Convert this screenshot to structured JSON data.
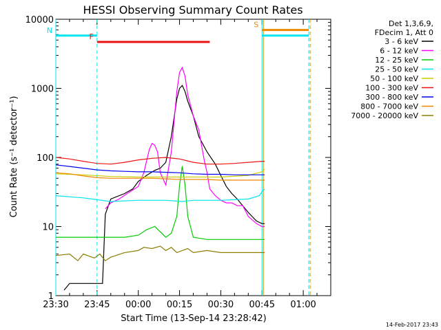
{
  "chart_data": {
    "type": "line",
    "title": "HESSI Observing Summary Count Rates",
    "xlabel": "Start Time (13-Sep-14 23:28:42)",
    "ylabel": "Count Rate (s⁻¹ detector⁻¹)",
    "yscale": "log",
    "ylim": [
      1,
      10000
    ],
    "xlim_minutes_from_2330": [
      0,
      100
    ],
    "x_ticks": [
      "23:30",
      "23:45",
      "00:00",
      "00:15",
      "00:30",
      "00:45",
      "01:00"
    ],
    "x_tick_minutes": [
      0,
      15,
      30,
      45,
      60,
      75,
      90
    ],
    "y_ticks": [
      "1",
      "10",
      "100",
      "1000",
      "10000"
    ],
    "y_tick_values": [
      1,
      10,
      100,
      1000,
      10000
    ],
    "legend_header": [
      "Det 1,3,6,9,",
      "FDecim 1, Att 0"
    ],
    "legend_placement": "right",
    "series": [
      {
        "name": "3 - 6 keV",
        "color": "#000000",
        "x": [
          3,
          5,
          17,
          18,
          20,
          25,
          28,
          30,
          33,
          36,
          38,
          40,
          42,
          44,
          45,
          46,
          47,
          48,
          50,
          52,
          55,
          58,
          60,
          62,
          64,
          66,
          68,
          70,
          73,
          75,
          76
        ],
        "y": [
          1.2,
          1.5,
          1.5,
          15,
          25,
          30,
          35,
          45,
          55,
          65,
          70,
          85,
          200,
          700,
          1000,
          1100,
          900,
          650,
          400,
          200,
          120,
          80,
          55,
          38,
          30,
          25,
          20,
          16,
          12,
          11,
          11
        ]
      },
      {
        "name": "6 - 12 keV",
        "color": "#ff00ff",
        "x": [
          18,
          20,
          23,
          26,
          30,
          32,
          34,
          35,
          36,
          37,
          38,
          40,
          42,
          44,
          45,
          46,
          47,
          48,
          50,
          52,
          54,
          55,
          56,
          58,
          60,
          62,
          64,
          66,
          68,
          70,
          73,
          75,
          76
        ],
        "y": [
          18,
          22,
          25,
          30,
          38,
          60,
          130,
          160,
          150,
          120,
          60,
          40,
          120,
          900,
          1700,
          2000,
          1500,
          800,
          400,
          250,
          90,
          60,
          35,
          28,
          24,
          22,
          22,
          20,
          20,
          14,
          11,
          10,
          10
        ]
      },
      {
        "name": "12 - 25 keV",
        "color": "#00cc00",
        "x": [
          0,
          5,
          10,
          15,
          20,
          25,
          30,
          33,
          36,
          40,
          42,
          44,
          45,
          46,
          47,
          48,
          50,
          55,
          60,
          65,
          70,
          75,
          76
        ],
        "y": [
          7,
          7,
          7,
          7,
          7,
          7,
          7.5,
          9,
          10,
          7,
          8,
          14,
          40,
          75,
          40,
          14,
          7,
          6.5,
          6.5,
          6.5,
          6.5,
          6.5,
          6.5
        ]
      },
      {
        "name": "25 - 50 keV",
        "color": "#00e5ee",
        "x": [
          0,
          10,
          20,
          30,
          40,
          46,
          50,
          60,
          70,
          74,
          75,
          76
        ],
        "y": [
          28,
          26,
          23,
          24,
          24,
          23,
          24,
          24,
          25,
          28,
          32,
          35
        ]
      },
      {
        "name": "50 - 100 keV",
        "color": "#cccc00",
        "x": [
          0,
          10,
          20,
          30,
          40,
          50,
          60,
          70,
          75,
          76
        ],
        "y": [
          58,
          56,
          53,
          52,
          52,
          52,
          52,
          55,
          62,
          68
        ]
      },
      {
        "name": "100 - 300 keV",
        "color": "#ee1111",
        "x": [
          0,
          5,
          10,
          15,
          20,
          25,
          30,
          35,
          40,
          45,
          50,
          55,
          60,
          65,
          70,
          75,
          76
        ],
        "y": [
          100,
          95,
          88,
          82,
          80,
          85,
          92,
          97,
          100,
          95,
          85,
          80,
          80,
          82,
          85,
          88,
          88
        ]
      },
      {
        "name": "300 - 800 keV",
        "color": "#0000ee",
        "x": [
          0,
          5,
          10,
          15,
          20,
          25,
          30,
          35,
          40,
          45,
          50,
          55,
          60,
          65,
          70,
          75,
          76
        ],
        "y": [
          78,
          74,
          70,
          66,
          64,
          63,
          62,
          62,
          61,
          60,
          58,
          57,
          57,
          56,
          56,
          56,
          56
        ]
      },
      {
        "name": "800 - 7000 keV",
        "color": "#ee8800",
        "x": [
          0,
          5,
          10,
          15,
          20,
          25,
          30,
          35,
          40,
          45,
          50,
          55,
          60,
          65,
          70,
          75,
          76
        ],
        "y": [
          60,
          58,
          54,
          51,
          50,
          50,
          50,
          50,
          49,
          48,
          48,
          48,
          47,
          47,
          47,
          47,
          47
        ]
      },
      {
        "name": "7000 - 20000 keV",
        "color": "#8b7d00",
        "x": [
          0,
          5,
          8,
          10,
          14,
          16,
          18,
          20,
          25,
          30,
          32,
          35,
          38,
          40,
          42,
          44,
          46,
          48,
          50,
          55,
          60,
          65,
          70,
          74,
          75,
          76
        ],
        "y": [
          3.8,
          4,
          3.2,
          4,
          3.5,
          4,
          3.2,
          3.6,
          4.2,
          4.5,
          5,
          4.8,
          5.2,
          4.5,
          5,
          4.2,
          4.5,
          4.8,
          4.2,
          4.5,
          4.2,
          4.2,
          4.2,
          4.2,
          4.2,
          4.2
        ]
      }
    ],
    "state_bars": [
      {
        "label": "N",
        "color": "#00e5ee",
        "x0": 0,
        "x1": 15,
        "y": 5800
      },
      {
        "label": "F",
        "color": "#ee1111",
        "x0": 15,
        "x1": 56,
        "y": 4700
      },
      {
        "label": "S",
        "color": "#ee8800",
        "x0": 75,
        "x1": 92,
        "y": 7000
      },
      {
        "label": "",
        "color": "#00e5ee",
        "x0": 75,
        "x1": 92,
        "y": 5800
      }
    ],
    "vertical_markers": [
      {
        "x": 0,
        "color": "#00e5ee",
        "style": "solid"
      },
      {
        "x": 15,
        "color": "#00e5ee",
        "style": "dashed"
      },
      {
        "x": 75,
        "color": "#00e5ee",
        "style": "solid"
      },
      {
        "x": 75.5,
        "color": "#ee8800",
        "style": "solid"
      },
      {
        "x": 92,
        "color": "#00e5ee",
        "style": "dashed"
      },
      {
        "x": 92.5,
        "color": "#ee8800",
        "style": "dashed"
      }
    ],
    "timestamp": "14-Feb-2017 23:43"
  }
}
